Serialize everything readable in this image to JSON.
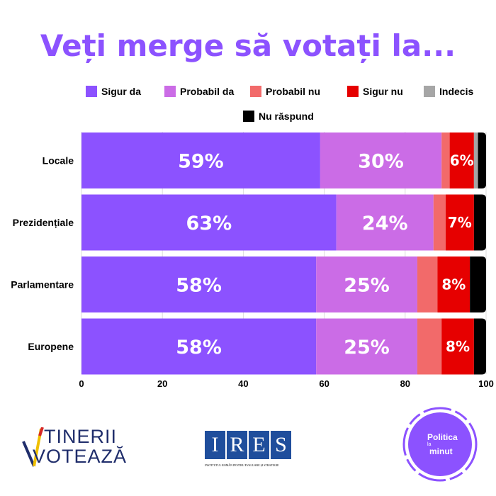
{
  "chart_data": {
    "type": "bar",
    "orientation": "horizontal",
    "stacked": true,
    "title": "Veți merge să votați la...",
    "categories": [
      "Locale",
      "Prezidențiale",
      "Parlamentare",
      "Europene"
    ],
    "series": [
      {
        "name": "Sigur da",
        "color": "#8c52ff",
        "values": [
          59,
          63,
          58,
          58
        ]
      },
      {
        "name": "Probabil da",
        "color": "#cb6ce6",
        "values": [
          30,
          24,
          25,
          25
        ]
      },
      {
        "name": "Probabil nu",
        "color": "#f26a6a",
        "values": [
          2,
          3,
          5,
          6
        ]
      },
      {
        "name": "Sigur nu",
        "color": "#e60000",
        "values": [
          6,
          7,
          8,
          8
        ]
      },
      {
        "name": "Indecis",
        "color": "#a6a6a6",
        "values": [
          1,
          0,
          0,
          0
        ]
      },
      {
        "name": "Nu răspund",
        "color": "#000000",
        "values": [
          2,
          3,
          4,
          3
        ]
      }
    ],
    "data_labels": {
      "Sigur da": [
        "59%",
        "63%",
        "58%",
        "58%"
      ],
      "Probabil da": [
        "30%",
        "24%",
        "25%",
        "25%"
      ],
      "Sigur nu": [
        "6%",
        "7%",
        "8%",
        "8%"
      ]
    },
    "xlim": [
      0,
      100
    ],
    "xticks": [
      "0",
      "20",
      "40",
      "60",
      "80",
      "100"
    ],
    "legend": "top",
    "grid": false
  },
  "logos": {
    "tinerii": [
      "TINERII",
      "VOTEAZĂ"
    ],
    "ires": [
      "I",
      "R",
      "E",
      "S"
    ],
    "ires_sub": "INSTITUTUL ROMÂN PENTRU EVALUARE ȘI STRATEGIE",
    "politica": [
      "Politica",
      "la",
      "minut"
    ]
  }
}
